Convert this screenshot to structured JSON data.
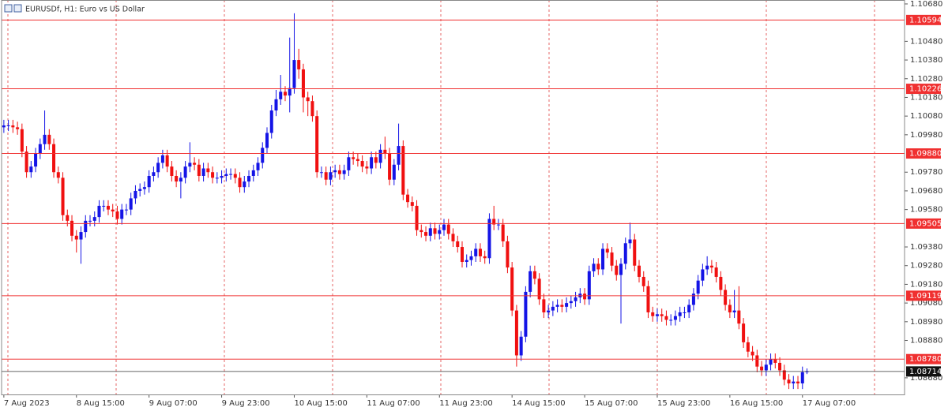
{
  "chart_data": {
    "type": "candlestick",
    "title": "EURUSDf, H1:  Euro vs US Dollar",
    "up_color": "#1414e6",
    "down_color": "#f01010",
    "level_color": "#f03030",
    "xlim": [
      -0.5,
      198.5
    ],
    "xticks": [
      {
        "value": 0,
        "label": "7 Aug 2023"
      },
      {
        "value": 16,
        "label": "8 Aug 15:00"
      },
      {
        "value": 32,
        "label": "9 Aug 07:00"
      },
      {
        "value": 48,
        "label": "9 Aug 23:00"
      },
      {
        "value": 64,
        "label": "10 Aug 15:00"
      },
      {
        "value": 80,
        "label": "11 Aug 07:00"
      },
      {
        "value": 96,
        "label": "11 Aug 23:00"
      },
      {
        "value": 112,
        "label": "14 Aug 15:00"
      },
      {
        "value": 128,
        "label": "15 Aug 07:00"
      },
      {
        "value": 144,
        "label": "15 Aug 23:00"
      },
      {
        "value": 160,
        "label": "16 Aug 15:00"
      },
      {
        "value": 176,
        "label": "17 Aug 07:00"
      }
    ],
    "ylim": [
      1.08591,
      1.10701
    ],
    "yticks": [
      {
        "value": 1.1068,
        "label": "1.10680"
      },
      {
        "value": 1.1048,
        "label": "1.10480"
      },
      {
        "value": 1.1038,
        "label": "1.10380"
      },
      {
        "value": 1.1028,
        "label": "1.10280"
      },
      {
        "value": 1.1018,
        "label": "1.10180"
      },
      {
        "value": 1.1008,
        "label": "1.10080"
      },
      {
        "value": 1.0998,
        "label": "1.09980"
      },
      {
        "value": 1.0978,
        "label": "1.09780"
      },
      {
        "value": 1.0968,
        "label": "1.09680"
      },
      {
        "value": 1.0958,
        "label": "1.09580"
      },
      {
        "value": 1.0938,
        "label": "1.09380"
      },
      {
        "value": 1.0928,
        "label": "1.09280"
      },
      {
        "value": 1.0918,
        "label": "1.09180"
      },
      {
        "value": 1.0908,
        "label": "1.09080"
      },
      {
        "value": 1.0898,
        "label": "1.08980"
      },
      {
        "value": 1.0888,
        "label": "1.08880"
      },
      {
        "value": 1.0868,
        "label": "1.08680"
      }
    ],
    "levels": [
      1.10594,
      1.10226,
      {
        "value": 1.0988,
        "label": "1.09880"
      },
      1.09505,
      1.09119,
      {
        "value": 1.0878,
        "label": "1.08780"
      }
    ],
    "current_price": 1.08714,
    "open": [
      1.1002,
      1.1003,
      1.1003,
      1.1002,
      1.1001,
      1.0989,
      1.0978,
      1.0981,
      1.0988,
      1.0993,
      1.0998,
      1.0993,
      1.0978,
      1.0975,
      1.0955,
      1.0952,
      1.0944,
      1.0942,
      1.0946,
      1.0952,
      1.0952,
      1.0954,
      1.096,
      1.096,
      1.0958,
      1.0957,
      1.0953,
      1.0958,
      1.0958,
      1.0964,
      1.0968,
      1.0969,
      1.097,
      1.0976,
      1.0978,
      1.0983,
      1.0987,
      1.0981,
      1.0976,
      1.0973,
      1.0975,
      1.0981,
      1.0983,
      1.0982,
      1.0976,
      1.098,
      1.0978,
      1.0975,
      1.0975,
      1.0976,
      1.0977,
      1.0977,
      1.0975,
      1.097,
      1.0973,
      1.0976,
      1.0979,
      1.0983,
      1.0991,
      1.0999,
      1.1011,
      1.1017,
      1.1021,
      1.1019,
      1.1023,
      1.1038,
      1.1033,
      1.1018,
      1.1016,
      1.1008,
      1.0978,
      1.0978,
      1.0974,
      1.0978,
      1.0979,
      1.0977,
      1.0979,
      1.0986,
      1.0985,
      1.0984,
      1.0981,
      1.098,
      1.0986,
      1.0983,
      1.099,
      1.0988,
      1.0974,
      1.0982,
      1.0992,
      1.0966,
      1.0962,
      1.096,
      1.0947,
      1.0946,
      1.0944,
      1.0948,
      1.0945,
      1.0947,
      1.095,
      1.0945,
      1.0941,
      1.0938,
      1.093,
      1.0931,
      1.0933,
      1.0937,
      1.0933,
      1.0932,
      1.0953,
      1.095,
      1.095,
      1.0941,
      1.0927,
      1.0904,
      1.088,
      1.089,
      1.0914,
      1.0925,
      1.0921,
      1.091,
      1.0903,
      1.0904,
      1.0906,
      1.0907,
      1.0906,
      1.0908,
      1.0909,
      1.0911,
      1.0913,
      1.091,
      1.0925,
      1.0929,
      1.0926,
      1.0937,
      1.0935,
      1.0928,
      1.0923,
      1.0929,
      1.094,
      1.0942,
      1.0928,
      1.0922,
      1.0917,
      1.0903,
      1.0901,
      1.0902,
      1.0901,
      1.0899,
      1.0899,
      1.0901,
      1.0903,
      1.0903,
      1.0907,
      1.0913,
      1.092,
      1.0926,
      1.0928,
      1.0927,
      1.0922,
      1.0915,
      1.0907,
      1.0903,
      1.0904,
      1.0897,
      1.0887,
      1.0882,
      1.088,
      1.0874,
      1.0872,
      1.0875,
      1.0878,
      1.0876,
      1.0872,
      1.0867,
      1.0865,
      1.0866,
      1.0865,
      1.0871
    ],
    "high": [
      1.1006,
      1.1006,
      1.1006,
      1.1005,
      1.1004,
      1.0992,
      1.0984,
      1.0991,
      1.0996,
      1.1011,
      1.1001,
      1.0996,
      1.0981,
      1.0978,
      1.0958,
      1.0955,
      1.0947,
      1.0949,
      1.0955,
      1.0955,
      1.0957,
      1.0963,
      1.0963,
      1.0963,
      1.0961,
      1.096,
      1.0961,
      1.0961,
      1.0967,
      1.0971,
      1.0972,
      1.0973,
      1.0979,
      1.0981,
      1.0986,
      1.099,
      1.099,
      1.0984,
      1.0979,
      1.0978,
      1.0984,
      1.0994,
      1.0986,
      1.0985,
      1.0983,
      1.0983,
      1.0981,
      1.0978,
      1.0979,
      1.098,
      1.098,
      1.098,
      1.0978,
      1.0976,
      1.0979,
      1.0982,
      1.0986,
      1.0994,
      1.1002,
      1.1014,
      1.1022,
      1.103,
      1.1024,
      1.105,
      1.1063,
      1.1044,
      1.1036,
      1.1021,
      1.1019,
      1.1011,
      1.0981,
      1.0981,
      1.0981,
      1.0982,
      1.0982,
      1.0982,
      1.0989,
      1.0989,
      1.0988,
      1.0987,
      1.0984,
      1.0989,
      1.0989,
      1.0993,
      1.0997,
      1.0991,
      1.0985,
      1.1004,
      1.0995,
      1.0969,
      1.0965,
      1.0963,
      1.095,
      1.0949,
      1.0951,
      1.0951,
      1.095,
      1.0953,
      1.0953,
      1.0948,
      1.0944,
      1.0941,
      1.0934,
      1.0936,
      1.094,
      1.094,
      1.0936,
      1.0956,
      1.096,
      1.0953,
      1.0953,
      1.0944,
      1.093,
      1.0907,
      1.0893,
      1.0917,
      1.0928,
      1.0928,
      1.0924,
      1.0913,
      1.0907,
      1.0909,
      1.091,
      1.091,
      1.0911,
      1.0912,
      1.0914,
      1.0916,
      1.0916,
      1.0928,
      1.0932,
      1.0932,
      1.094,
      1.094,
      1.0938,
      1.0931,
      1.0932,
      1.0943,
      1.0951,
      1.0945,
      1.0931,
      1.0925,
      1.092,
      1.0906,
      1.0905,
      1.0905,
      1.0904,
      1.0902,
      1.0904,
      1.0906,
      1.0906,
      1.091,
      1.0916,
      1.0923,
      1.0929,
      1.0933,
      1.0931,
      1.093,
      1.0925,
      1.0918,
      1.091,
      1.0915,
      1.0917,
      1.09,
      1.089,
      1.0885,
      1.0883,
      1.0877,
      1.0878,
      1.0881,
      1.0881,
      1.0879,
      1.0875,
      1.087,
      1.0869,
      1.0869,
      1.0874,
      1.0873
    ],
    "low": [
      1.0999,
      1.1,
      1.0999,
      1.0998,
      1.0986,
      1.0975,
      1.0975,
      1.0978,
      1.0985,
      1.099,
      1.099,
      1.0975,
      1.0972,
      1.0952,
      1.0949,
      1.0941,
      1.0935,
      1.0929,
      1.0943,
      1.0949,
      1.0949,
      1.0951,
      1.0957,
      1.0955,
      1.0954,
      1.095,
      1.095,
      1.0955,
      1.0955,
      1.0961,
      1.0965,
      1.0966,
      1.0967,
      1.0973,
      1.0975,
      1.098,
      1.0978,
      1.0973,
      1.097,
      1.0964,
      1.0972,
      1.0978,
      1.0979,
      1.0973,
      1.0973,
      1.0975,
      1.0972,
      1.0972,
      1.0972,
      1.0973,
      1.0974,
      1.0972,
      1.0967,
      1.0967,
      1.097,
      1.0973,
      1.0976,
      1.098,
      1.0988,
      1.0996,
      1.1008,
      1.1014,
      1.1016,
      1.101,
      1.102,
      1.1028,
      1.101,
      1.1008,
      1.1005,
      1.0975,
      1.0975,
      1.0971,
      1.0971,
      1.0975,
      1.0974,
      1.0974,
      1.0976,
      1.0982,
      1.0981,
      1.0978,
      1.0977,
      1.0977,
      1.098,
      1.098,
      1.0985,
      1.0971,
      1.0971,
      1.0979,
      1.0963,
      1.0959,
      1.0957,
      1.0944,
      1.0943,
      1.0941,
      1.0941,
      1.0942,
      1.0942,
      1.0944,
      1.0942,
      1.0938,
      1.0935,
      1.0927,
      1.0927,
      1.0928,
      1.093,
      1.093,
      1.0929,
      1.0929,
      1.0947,
      1.0947,
      1.0938,
      1.0924,
      1.0901,
      1.0874,
      1.0877,
      1.0887,
      1.0911,
      1.0918,
      1.0907,
      1.09,
      1.09,
      1.0901,
      1.0903,
      1.0903,
      1.0903,
      1.0905,
      1.0906,
      1.0908,
      1.0907,
      1.0907,
      1.0922,
      1.0923,
      1.0923,
      1.0932,
      1.0925,
      1.092,
      1.0897,
      1.0926,
      1.0937,
      1.0925,
      1.0919,
      1.0914,
      1.09,
      1.0898,
      1.0898,
      1.0898,
      1.0896,
      1.0896,
      1.0896,
      1.0898,
      1.09,
      1.09,
      1.0904,
      1.091,
      1.0917,
      1.0923,
      1.0924,
      1.0919,
      1.0912,
      1.0904,
      1.09,
      1.09,
      1.0894,
      1.0884,
      1.0879,
      1.0877,
      1.0871,
      1.0869,
      1.0869,
      1.0872,
      1.0873,
      1.0869,
      1.0864,
      1.0862,
      1.0862,
      1.0862,
      1.0862,
      1.087
    ],
    "close": [
      1.1003,
      1.1003,
      1.1002,
      1.1001,
      1.0989,
      1.0978,
      1.0981,
      1.0988,
      1.0993,
      1.0998,
      1.0993,
      1.0978,
      1.0975,
      1.0955,
      1.0952,
      1.0944,
      1.0942,
      1.0946,
      1.0952,
      1.0952,
      1.0954,
      1.096,
      1.096,
      1.0958,
      1.0957,
      1.0953,
      1.0958,
      1.0958,
      1.0964,
      1.0968,
      1.0969,
      1.097,
      1.0976,
      1.0978,
      1.0983,
      1.0987,
      1.0981,
      1.0976,
      1.0973,
      1.0975,
      1.0981,
      1.0983,
      1.0982,
      1.0976,
      1.098,
      1.0978,
      1.0975,
      1.0975,
      1.0976,
      1.0977,
      1.0977,
      1.0975,
      1.097,
      1.0973,
      1.0976,
      1.0979,
      1.0983,
      1.0991,
      1.0999,
      1.1011,
      1.1017,
      1.1021,
      1.1019,
      1.1023,
      1.1038,
      1.1033,
      1.1018,
      1.1016,
      1.1008,
      1.0978,
      1.0978,
      1.0974,
      1.0978,
      1.0979,
      1.0977,
      1.0979,
      1.0986,
      1.0985,
      1.0984,
      1.0981,
      1.098,
      1.0986,
      1.0983,
      1.099,
      1.0988,
      1.0974,
      1.0982,
      1.0992,
      1.0966,
      1.0962,
      1.096,
      1.0947,
      1.0946,
      1.0944,
      1.0948,
      1.0945,
      1.0947,
      1.095,
      1.0945,
      1.0941,
      1.0938,
      1.093,
      1.0931,
      1.0933,
      1.0937,
      1.0933,
      1.0932,
      1.0953,
      1.095,
      1.095,
      1.0941,
      1.0927,
      1.0904,
      1.088,
      1.089,
      1.0914,
      1.0925,
      1.0921,
      1.091,
      1.0903,
      1.0904,
      1.0906,
      1.0907,
      1.0906,
      1.0908,
      1.0909,
      1.0911,
      1.0913,
      1.091,
      1.0925,
      1.0929,
      1.0926,
      1.0937,
      1.0935,
      1.0928,
      1.0923,
      1.0929,
      1.094,
      1.0942,
      1.0928,
      1.0922,
      1.0917,
      1.0903,
      1.0901,
      1.0902,
      1.0901,
      1.0899,
      1.0899,
      1.0901,
      1.0903,
      1.0903,
      1.0907,
      1.0913,
      1.092,
      1.0926,
      1.0928,
      1.0927,
      1.0922,
      1.0915,
      1.0907,
      1.0903,
      1.0904,
      1.0897,
      1.0887,
      1.0882,
      1.088,
      1.0874,
      1.0872,
      1.0875,
      1.0878,
      1.0876,
      1.0872,
      1.0867,
      1.0865,
      1.0866,
      1.0865,
      1.0871,
      1.08714
    ]
  }
}
